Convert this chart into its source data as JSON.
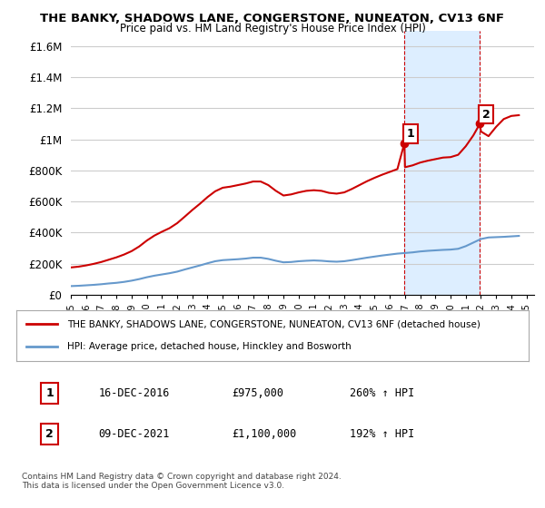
{
  "title1": "THE BANKY, SHADOWS LANE, CONGERSTONE, NUNEATON, CV13 6NF",
  "title2": "Price paid vs. HM Land Registry's House Price Index (HPI)",
  "ylabel_ticks": [
    "£0",
    "£200K",
    "£400K",
    "£600K",
    "£800K",
    "£1M",
    "£1.2M",
    "£1.4M",
    "£1.6M"
  ],
  "ytick_vals": [
    0,
    200000,
    400000,
    600000,
    800000,
    1000000,
    1200000,
    1400000,
    1600000
  ],
  "ylim": [
    0,
    1700000
  ],
  "xlim_start": 1995.0,
  "xlim_end": 2025.5,
  "sale1_x": 2016.96,
  "sale1_y": 975000,
  "sale1_label": "1",
  "sale2_x": 2021.93,
  "sale2_y": 1100000,
  "sale2_label": "2",
  "sale1_date": "16-DEC-2016",
  "sale1_price": "£975,000",
  "sale1_hpi": "260% ↑ HPI",
  "sale2_date": "09-DEC-2021",
  "sale2_price": "£1,100,000",
  "sale2_hpi": "192% ↑ HPI",
  "legend_line1": "THE BANKY, SHADOWS LANE, CONGERSTONE, NUNEATON, CV13 6NF (detached house)",
  "legend_line2": "HPI: Average price, detached house, Hinckley and Bosworth",
  "footer": "Contains HM Land Registry data © Crown copyright and database right 2024.\nThis data is licensed under the Open Government Licence v3.0.",
  "line_color_red": "#cc0000",
  "line_color_blue": "#6699cc",
  "shade_color": "#ddeeff",
  "grid_color": "#cccccc",
  "bg_color": "#ffffff",
  "sale_marker_color": "#cc0000",
  "dashed_line_color": "#cc0000",
  "hpi_data_x": [
    1995,
    1995.5,
    1996,
    1996.5,
    1997,
    1997.5,
    1998,
    1998.5,
    1999,
    1999.5,
    2000,
    2000.5,
    2001,
    2001.5,
    2002,
    2002.5,
    2003,
    2003.5,
    2004,
    2004.5,
    2005,
    2005.5,
    2006,
    2006.5,
    2007,
    2007.5,
    2008,
    2008.5,
    2009,
    2009.5,
    2010,
    2010.5,
    2011,
    2011.5,
    2012,
    2012.5,
    2013,
    2013.5,
    2014,
    2014.5,
    2015,
    2015.5,
    2016,
    2016.5,
    2017,
    2017.5,
    2018,
    2018.5,
    2019,
    2019.5,
    2020,
    2020.5,
    2021,
    2021.5,
    2022,
    2022.5,
    2023,
    2023.5,
    2024,
    2024.5
  ],
  "hpi_data_y": [
    55000,
    57000,
    60000,
    63000,
    67000,
    72000,
    76000,
    82000,
    90000,
    100000,
    112000,
    122000,
    130000,
    138000,
    148000,
    162000,
    175000,
    188000,
    202000,
    215000,
    222000,
    225000,
    228000,
    232000,
    238000,
    238000,
    230000,
    218000,
    208000,
    210000,
    215000,
    218000,
    220000,
    218000,
    214000,
    212000,
    215000,
    222000,
    230000,
    238000,
    245000,
    252000,
    258000,
    264000,
    268000,
    272000,
    278000,
    282000,
    285000,
    288000,
    290000,
    295000,
    312000,
    335000,
    358000,
    368000,
    370000,
    372000,
    375000,
    378000
  ],
  "red_data_x": [
    1995,
    1995.5,
    1996,
    1996.5,
    1997,
    1997.5,
    1998,
    1998.5,
    1999,
    1999.5,
    2000,
    2000.5,
    2001,
    2001.5,
    2002,
    2002.5,
    2003,
    2003.5,
    2004,
    2004.5,
    2005,
    2005.5,
    2006,
    2006.5,
    2007,
    2007.5,
    2008,
    2008.5,
    2009,
    2009.5,
    2010,
    2010.5,
    2011,
    2011.5,
    2012,
    2012.5,
    2013,
    2013.5,
    2014,
    2014.5,
    2015,
    2015.5,
    2016,
    2016.5,
    2016.96,
    2017,
    2017.5,
    2018,
    2018.5,
    2019,
    2019.5,
    2020,
    2020.5,
    2021,
    2021.5,
    2021.93,
    2022,
    2022.5,
    2023,
    2023.5,
    2024,
    2024.5
  ],
  "red_data_y": [
    175000,
    180000,
    188000,
    198000,
    210000,
    225000,
    240000,
    258000,
    280000,
    310000,
    348000,
    380000,
    405000,
    428000,
    460000,
    502000,
    545000,
    585000,
    628000,
    665000,
    688000,
    695000,
    705000,
    715000,
    728000,
    728000,
    705000,
    668000,
    638000,
    645000,
    658000,
    668000,
    672000,
    668000,
    655000,
    650000,
    658000,
    680000,
    705000,
    730000,
    752000,
    772000,
    790000,
    808000,
    975000,
    820000,
    832000,
    850000,
    862000,
    872000,
    882000,
    885000,
    900000,
    955000,
    1025000,
    1100000,
    1050000,
    1020000,
    1080000,
    1130000,
    1150000,
    1155000
  ]
}
